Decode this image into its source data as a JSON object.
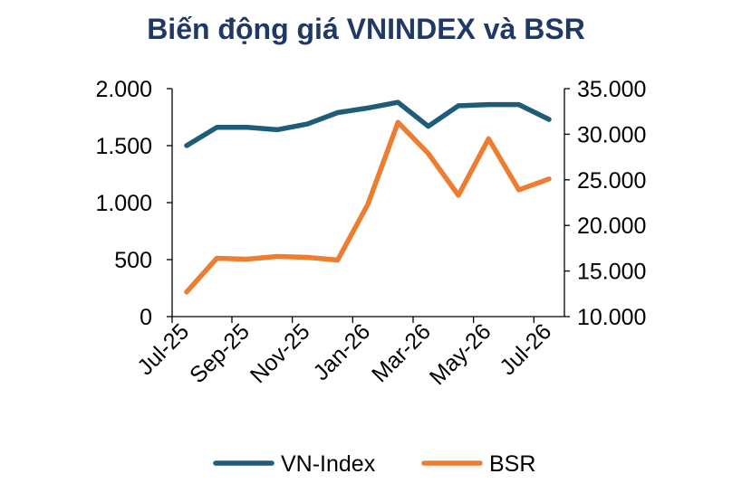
{
  "chart_data": {
    "type": "line",
    "title": "Biến động giá VNINDEX và BSR",
    "x_tick_labels": [
      "Jul-25",
      "Sep-25",
      "Nov-25",
      "Jan-26",
      "Mar-26",
      "May-26",
      "Jul-26"
    ],
    "x": [
      "Jul-25",
      "Aug-25",
      "Sep-25",
      "Oct-25",
      "Nov-25",
      "Dec-25",
      "Jan-26",
      "Feb-26",
      "Mar-26",
      "Apr-26",
      "May-26",
      "Jun-26",
      "Jul-26"
    ],
    "series": [
      {
        "name": "VN-Index",
        "axis": "left",
        "color": "#1f5c7a",
        "values": [
          1500,
          1660,
          1660,
          1640,
          1690,
          1790,
          1830,
          1880,
          1670,
          1850,
          1860,
          1860,
          1730
        ]
      },
      {
        "name": "BSR",
        "axis": "right",
        "color": "#ed7d31",
        "values": [
          12700,
          16400,
          16300,
          16600,
          16500,
          16200,
          22300,
          31300,
          27900,
          23300,
          29500,
          23900,
          25100
        ]
      }
    ],
    "left_axis": {
      "ylim": [
        0,
        2000
      ],
      "ticks": [
        0,
        500,
        1000,
        1500,
        2000
      ],
      "tick_labels": [
        "0",
        "500",
        "1.000",
        "1.500",
        "2.000"
      ]
    },
    "right_axis": {
      "ylim": [
        10000,
        35000
      ],
      "ticks": [
        10000,
        15000,
        20000,
        25000,
        30000,
        35000
      ],
      "tick_labels": [
        "10.000",
        "15.000",
        "20.000",
        "25.000",
        "30.000",
        "35.000"
      ]
    },
    "grid": false,
    "legend_position": "bottom"
  }
}
